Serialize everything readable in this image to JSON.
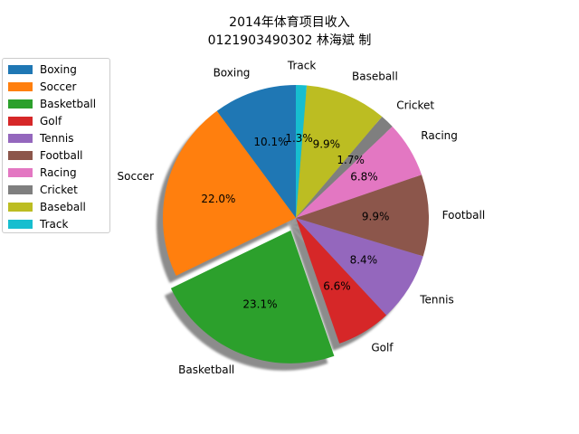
{
  "chart_data": {
    "type": "pie",
    "title": "2014年体育项目收入",
    "subtitle": "0121903490302 林海斌 制",
    "categories": [
      "Boxing",
      "Soccer",
      "Basketball",
      "Golf",
      "Tennis",
      "Football",
      "Racing",
      "Cricket",
      "Baseball",
      "Track"
    ],
    "values": [
      10.1,
      22.0,
      23.1,
      6.6,
      8.4,
      9.9,
      6.8,
      1.7,
      9.9,
      1.3
    ],
    "value_labels": [
      "10.1%",
      "22.0%",
      "23.1%",
      "6.6%",
      "8.4%",
      "9.9%",
      "6.8%",
      "1.7%",
      "9.9%",
      "1.3%"
    ],
    "colors": [
      "#1f77b4",
      "#ff7f0e",
      "#2ca02c",
      "#d62728",
      "#9467bd",
      "#8c564b",
      "#e377c2",
      "#7f7f7f",
      "#bcbd22",
      "#17becf"
    ],
    "exploded": "Basketball",
    "shadow": true,
    "start_angle_deg": 90,
    "direction": "counterclockwise",
    "legend": "upper-left"
  }
}
